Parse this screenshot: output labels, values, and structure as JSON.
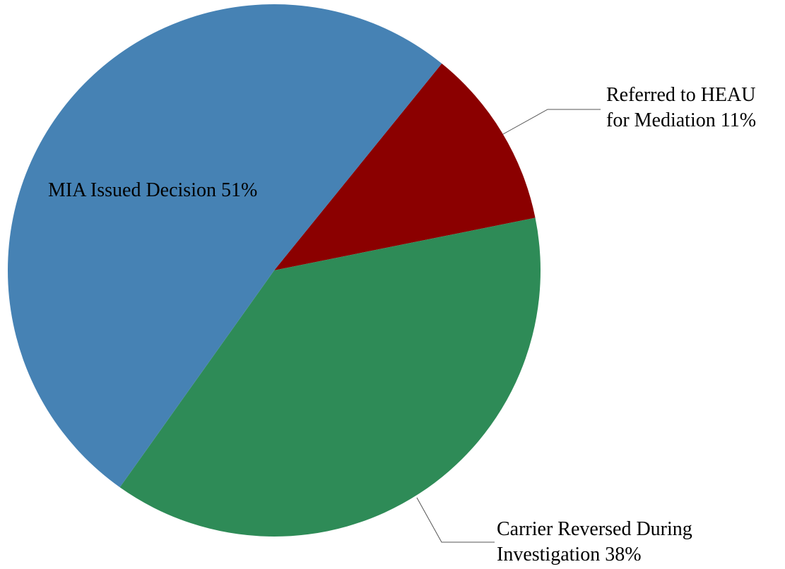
{
  "chart_data": {
    "type": "pie",
    "categories": [
      "Referred to HEAU for Mediation",
      "Carrier Reversed During Investigation",
      "MIA Issued Decision"
    ],
    "values": [
      11,
      38,
      51
    ],
    "value_labels": [
      "11%",
      "38%",
      "51%"
    ],
    "colors": [
      "#8b0000",
      "#2e8b57",
      "#4682b4"
    ]
  }
}
